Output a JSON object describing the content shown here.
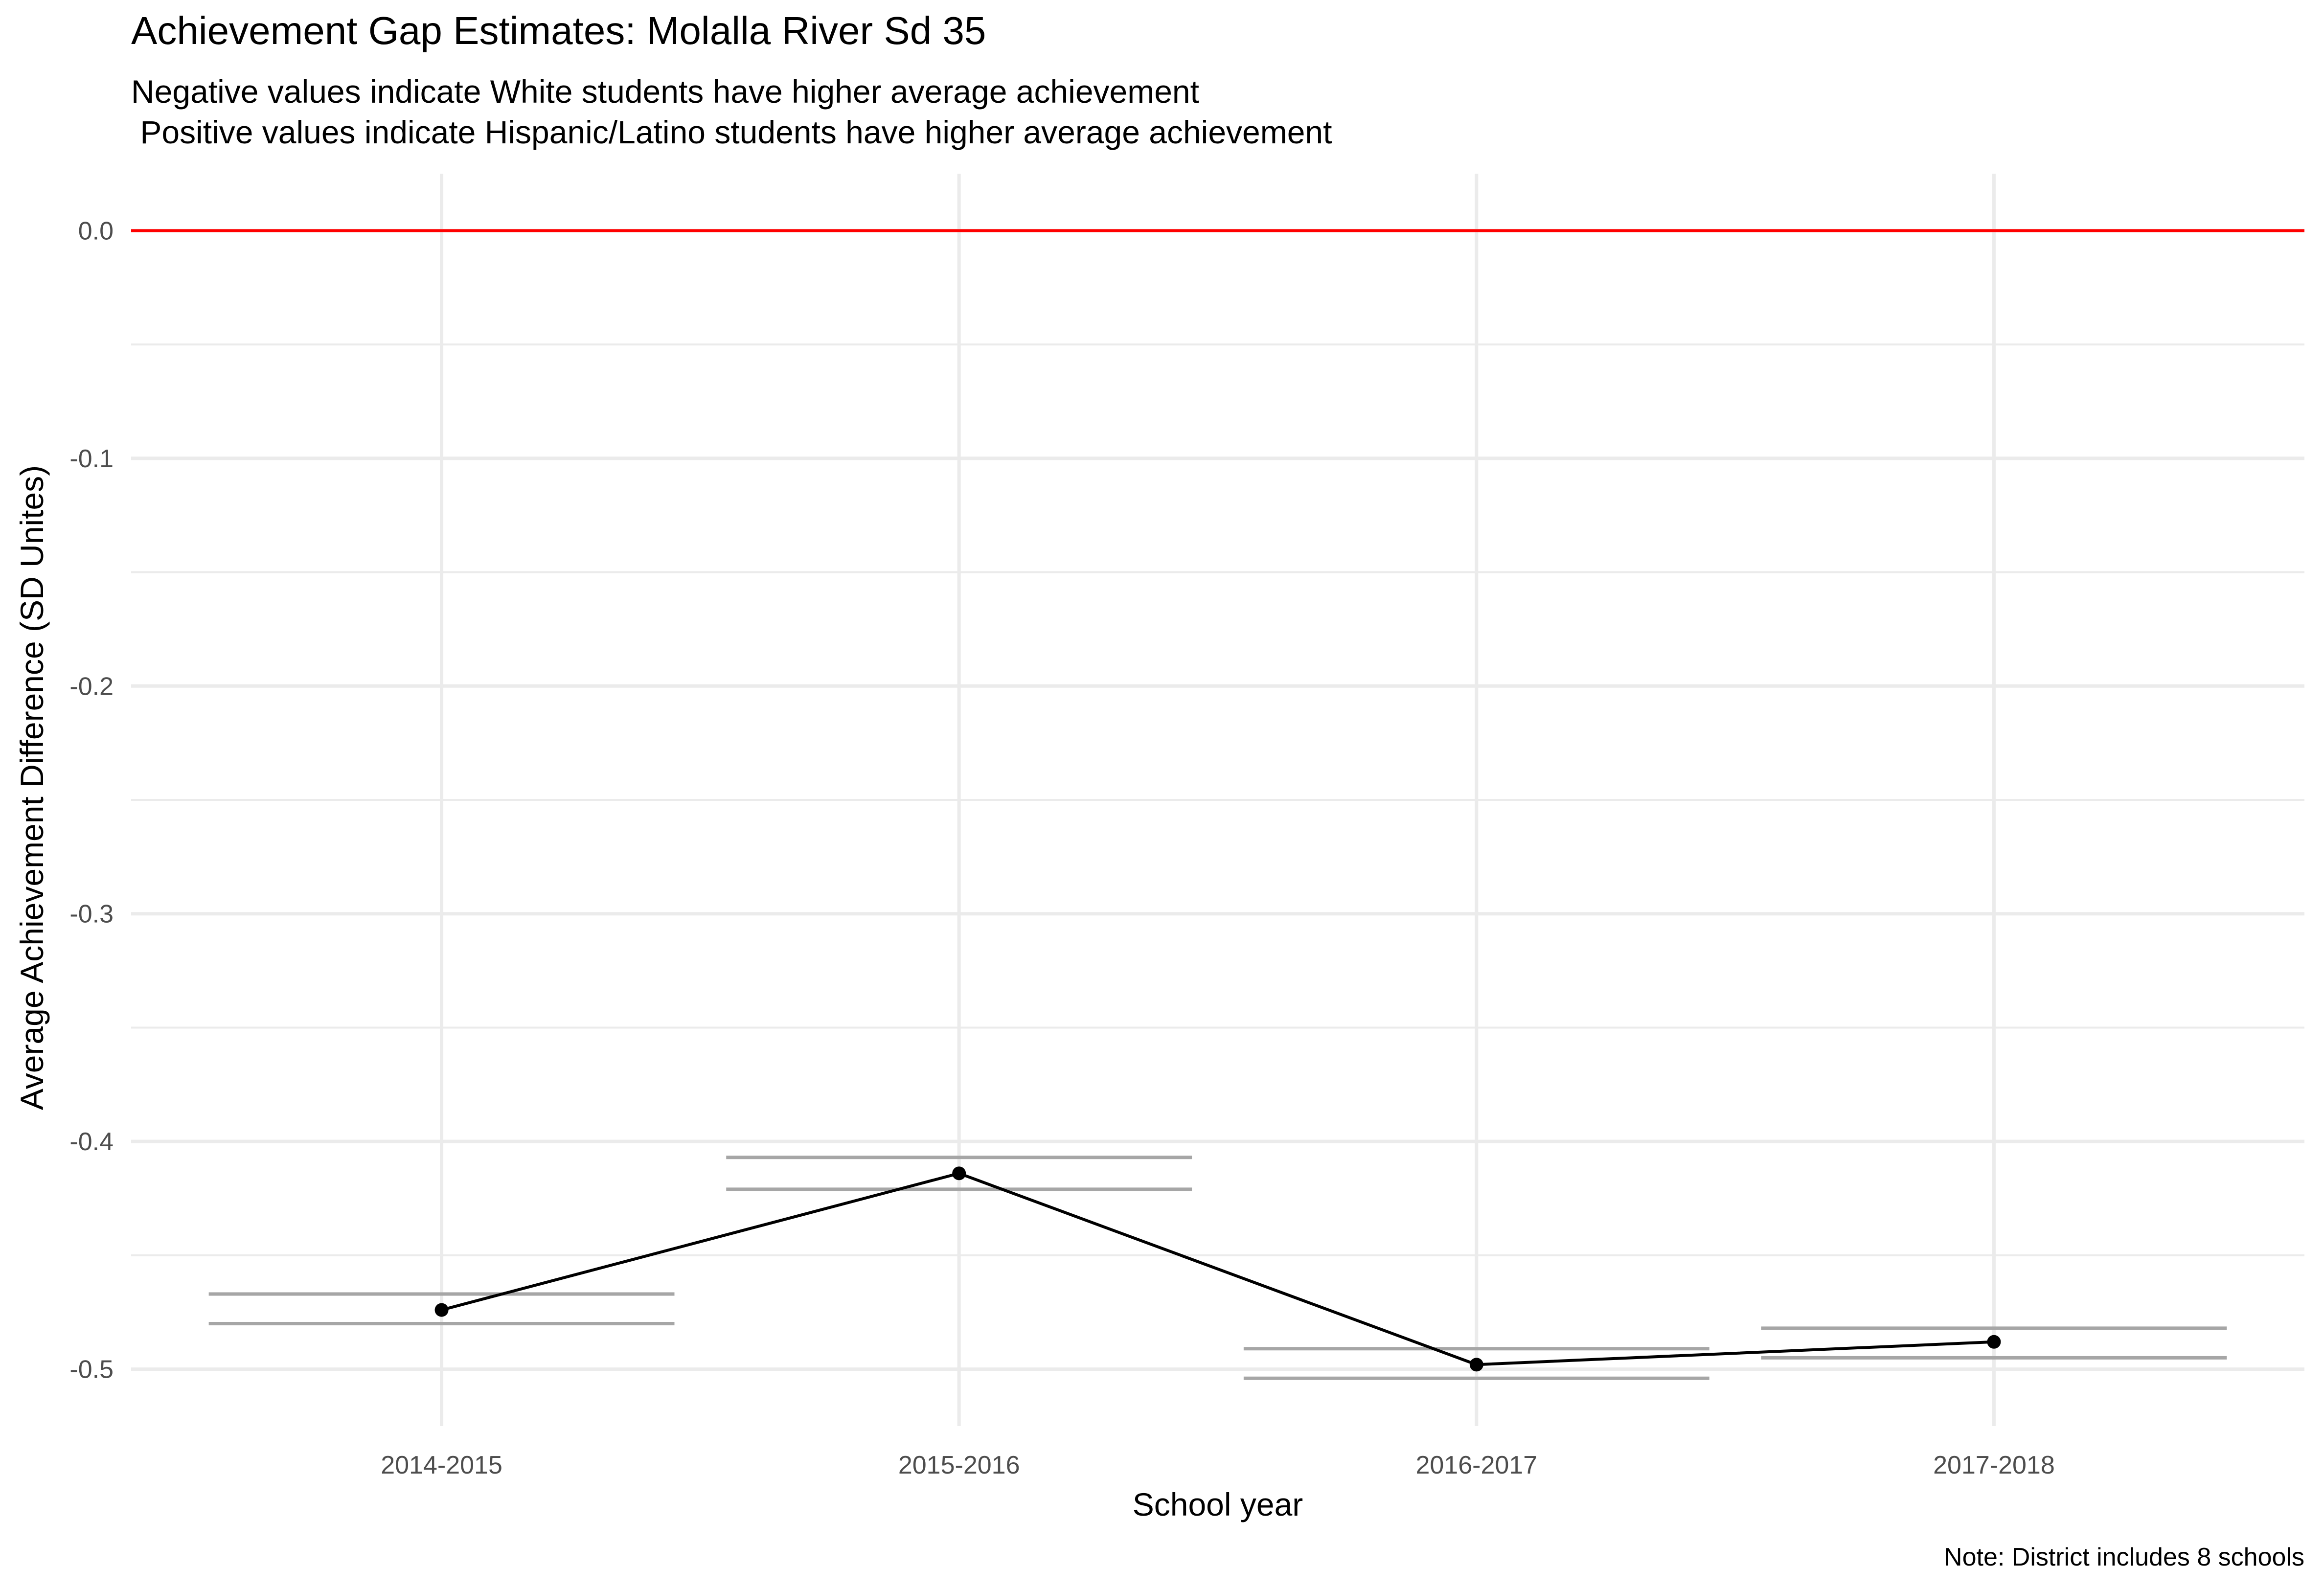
{
  "chart_data": {
    "type": "line",
    "title": "Achievement Gap Estimates: Molalla River Sd 35",
    "subtitle_lines": [
      "Negative values indicate White students have higher average achievement",
      " Positive values indicate Hispanic/Latino students have higher average achievement"
    ],
    "xlabel": "School year",
    "ylabel": "Average Achievement Difference (SD Unites)",
    "caption": "Note: District includes 8 schools",
    "categories": [
      "2014-2015",
      "2015-2016",
      "2016-2017",
      "2017-2018"
    ],
    "values": [
      -0.474,
      -0.414,
      -0.498,
      -0.488
    ],
    "interval_lower": [
      -0.48,
      -0.421,
      -0.504,
      -0.495
    ],
    "interval_upper": [
      -0.467,
      -0.407,
      -0.491,
      -0.482
    ],
    "reference_line": 0.0,
    "ylim": [
      -0.525,
      0.025
    ],
    "y_ticks": [
      0.0,
      -0.1,
      -0.2,
      -0.3,
      -0.4,
      -0.5
    ],
    "y_tick_labels": [
      "0.0",
      "-0.1",
      "-0.2",
      "-0.3",
      "-0.4",
      "-0.5"
    ],
    "grid": true,
    "colors": {
      "line": "#000000",
      "points": "#000000",
      "reference_line": "#ff0000",
      "intervals": "#a6a6a6",
      "grid": "#ebebeb"
    }
  }
}
